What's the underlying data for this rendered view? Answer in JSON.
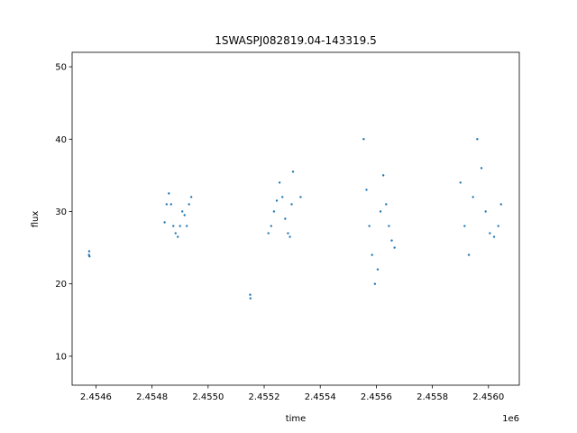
{
  "chart_data": {
    "type": "scatter",
    "title": "1SWASPJ082819.04-143319.5",
    "xlabel": "time",
    "ylabel": "flux",
    "x_offset_label": "1e6",
    "xlim": [
      2454515,
      2456110
    ],
    "ylim": [
      6,
      52
    ],
    "x_ticks": [
      2454600,
      2454800,
      2455000,
      2455200,
      2455400,
      2455600,
      2455800,
      2456000
    ],
    "x_tick_labels": [
      "2.4546",
      "2.4548",
      "2.4550",
      "2.4552",
      "2.4554",
      "2.4556",
      "2.4558",
      "2.4560"
    ],
    "y_ticks": [
      10,
      20,
      30,
      40,
      50
    ],
    "y_tick_labels": [
      "10",
      "20",
      "30",
      "40",
      "50"
    ],
    "grid": false,
    "marker_color": "#1f77b4",
    "series": [
      {
        "x": [
          2454575,
          2454576,
          2454577,
          2454845,
          2454852,
          2454860,
          2454868,
          2454876,
          2454884,
          2454892,
          2454900,
          2454908,
          2454916,
          2454924,
          2454932,
          2454940,
          2455150,
          2455151,
          2455215,
          2455225,
          2455235,
          2455245,
          2455255,
          2455265,
          2455275,
          2455285,
          2455292,
          2455298,
          2455303,
          2455330,
          2455555,
          2455565,
          2455575,
          2455585,
          2455595,
          2455605,
          2455615,
          2455625,
          2455635,
          2455645,
          2455655,
          2455665,
          2455900,
          2455915,
          2455930,
          2455945,
          2455960,
          2455975,
          2455990,
          2456005,
          2456020,
          2456035,
          2456045
        ],
        "y": [
          24.0,
          24.5,
          23.8,
          28.5,
          31.0,
          32.5,
          31.0,
          28.0,
          27.0,
          26.5,
          28.0,
          30.0,
          29.5,
          28.0,
          31.0,
          32.0,
          18.5,
          18.0,
          27.0,
          28.0,
          30.0,
          31.5,
          34.0,
          32.0,
          29.0,
          27.0,
          26.5,
          31.0,
          35.5,
          32.0,
          40.0,
          33.0,
          28.0,
          24.0,
          20.0,
          22.0,
          30.0,
          35.0,
          31.0,
          28.0,
          26.0,
          25.0,
          34.0,
          28.0,
          24.0,
          32.0,
          40.0,
          36.0,
          30.0,
          27.0,
          26.5,
          28.0,
          31.0
        ]
      }
    ]
  }
}
